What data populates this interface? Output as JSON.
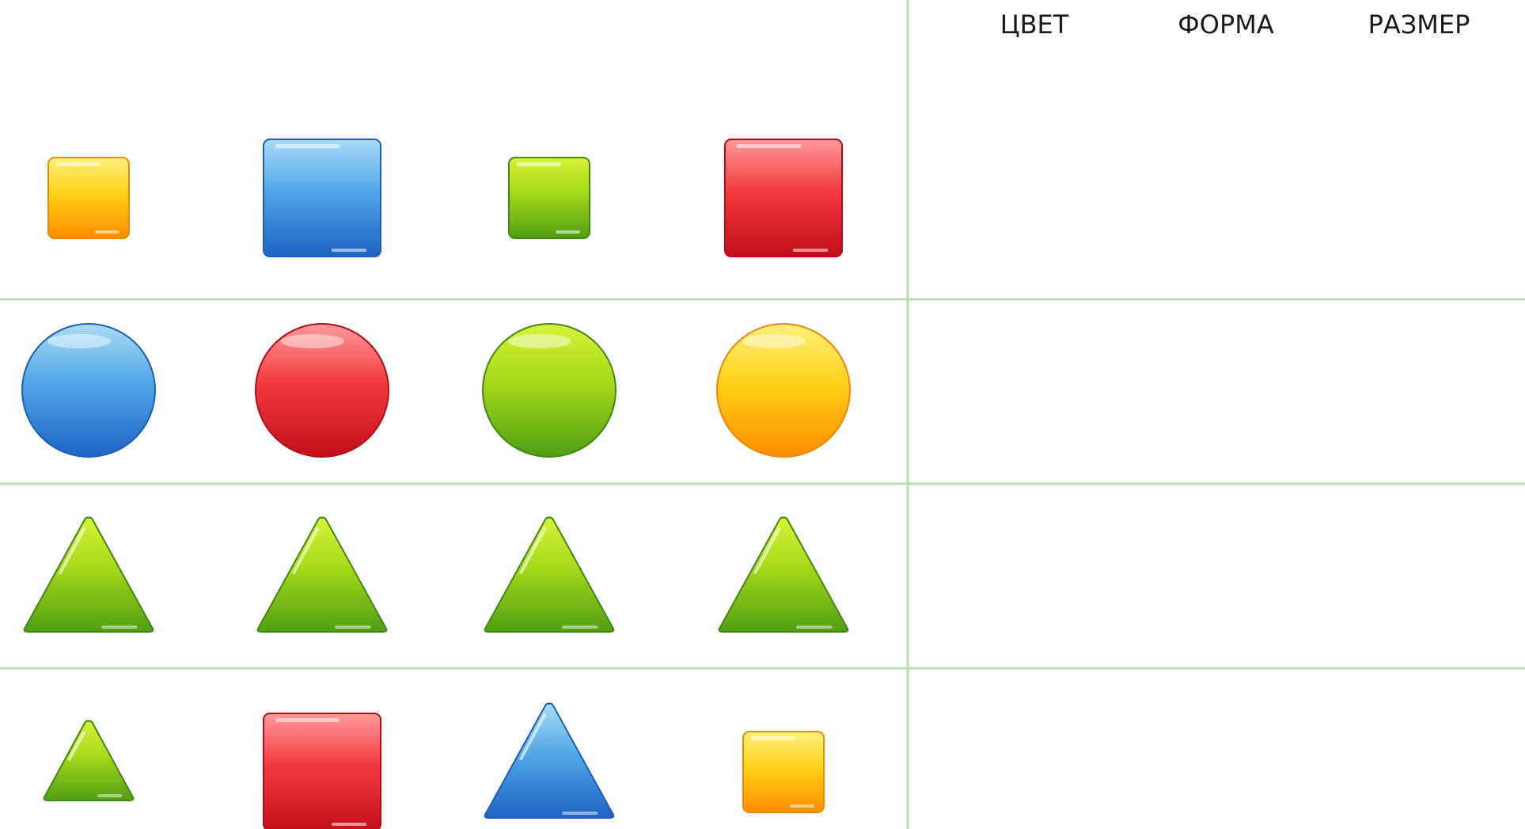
{
  "headers": {
    "color": "ЦВЕТ",
    "shape": "ФОРМА",
    "size": "РАЗМЕР"
  },
  "colors": {
    "grid_line": "#b9dcb4",
    "yellow": "#ffb300",
    "blue": "#2f86dc",
    "green": "#6cbf16",
    "red": "#e3262b"
  },
  "rows": [
    [
      {
        "shape": "square",
        "color": "yellow",
        "size": "small"
      },
      {
        "shape": "square",
        "color": "blue",
        "size": "large"
      },
      {
        "shape": "square",
        "color": "green",
        "size": "small"
      },
      {
        "shape": "square",
        "color": "red",
        "size": "large"
      }
    ],
    [
      {
        "shape": "circle",
        "color": "blue",
        "size": "large"
      },
      {
        "shape": "circle",
        "color": "red",
        "size": "large"
      },
      {
        "shape": "circle",
        "color": "green",
        "size": "large"
      },
      {
        "shape": "circle",
        "color": "yellow",
        "size": "large"
      }
    ],
    [
      {
        "shape": "triangle",
        "color": "green",
        "size": "large"
      },
      {
        "shape": "triangle",
        "color": "green",
        "size": "large"
      },
      {
        "shape": "triangle",
        "color": "green",
        "size": "large"
      },
      {
        "shape": "triangle",
        "color": "green",
        "size": "large"
      }
    ],
    [
      {
        "shape": "triangle",
        "color": "green",
        "size": "small"
      },
      {
        "shape": "square",
        "color": "red",
        "size": "large"
      },
      {
        "shape": "triangle",
        "color": "blue",
        "size": "large"
      },
      {
        "shape": "square",
        "color": "yellow",
        "size": "small"
      }
    ]
  ]
}
